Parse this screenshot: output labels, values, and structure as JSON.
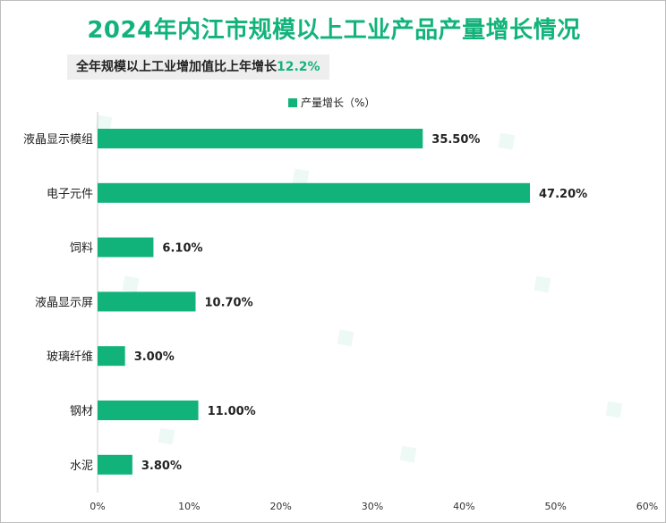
{
  "title": "2024年内江市规模以上工业产品产量增长情况",
  "subtitle": {
    "text": "全年规模以上工业增加值比上年增长",
    "value": "12.2%"
  },
  "colors": {
    "bar": "#12b37b",
    "accent": "#12b37b",
    "gridline": "#e0e0e0"
  },
  "chart_data": {
    "type": "bar",
    "orientation": "horizontal",
    "categories": [
      "液晶显示模组",
      "电子元件",
      "饲料",
      "液晶显示屏",
      "玻璃纤维",
      "钢材",
      "水泥"
    ],
    "series": [
      {
        "name": "产量增长（%）",
        "values": [
          35.5,
          47.2,
          6.1,
          10.7,
          3.0,
          11.0,
          3.8
        ],
        "labels": [
          "35.50%",
          "47.20%",
          "6.10%",
          "10.70%",
          "3.00%",
          "11.00%",
          "3.80%"
        ]
      }
    ],
    "xlim": [
      0,
      60
    ],
    "xticks": [
      0,
      10,
      20,
      30,
      40,
      50,
      60
    ],
    "xtick_labels": [
      "0%",
      "10%",
      "20%",
      "30%",
      "40%",
      "50%",
      "60%"
    ],
    "legend_position": "top",
    "grid": false
  }
}
